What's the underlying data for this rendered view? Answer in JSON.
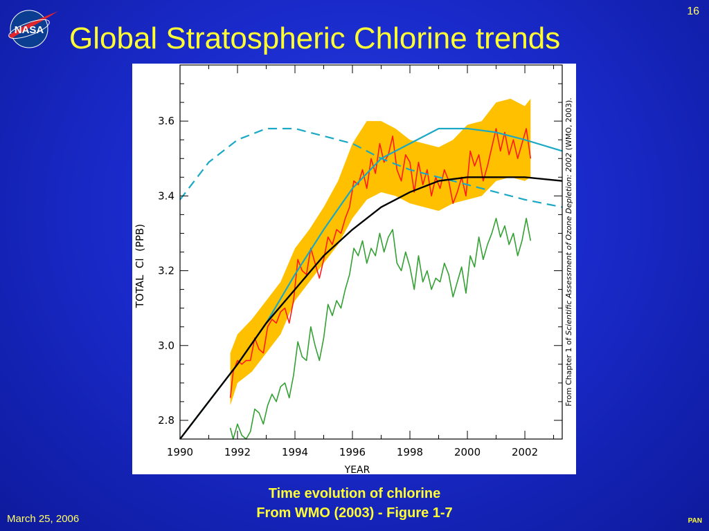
{
  "slide": {
    "title": "Global Stratospheric Chlorine trends",
    "page_number": "16",
    "caption_line1": "Time evolution of chlorine",
    "caption_line2": "From WMO (2003) - Figure 1-7",
    "footer_date": "March 25, 2006",
    "footer_tag": "PAN",
    "logo_text": "NASA"
  },
  "colors": {
    "background": "#1a2bcc",
    "title": "#ffff33",
    "uncertainty_band": "#ffc000",
    "observed": "#ff1a1a",
    "lower": "#33a033",
    "model_solid": "#1aa8c4",
    "model_dashed": "#1aa8c4",
    "fit": "#000000"
  },
  "chart_data": {
    "type": "line",
    "xlabel": "YEAR",
    "ylabel": "TOTAL  Cl  (PPB)",
    "side_note_pre": "From Chapter 1 of ",
    "side_note_italic": "Scientific Assessment of Ozone Depletion: 2002",
    "side_note_post": " (WMO, 2003).",
    "xlim": [
      1990,
      2003.3
    ],
    "ylim": [
      2.75,
      3.75
    ],
    "x_ticks": [
      1990,
      1992,
      1994,
      1996,
      1998,
      2000,
      2002
    ],
    "x_tick_labels": [
      "1990",
      "1992",
      "1994",
      "1996",
      "1998",
      "2000",
      "2002"
    ],
    "y_ticks": [
      2.8,
      3.0,
      3.2,
      3.4,
      3.6
    ],
    "y_tick_labels": [
      "2.8",
      "3.0",
      "3.2",
      "3.4",
      "3.6"
    ],
    "grid": false,
    "series": [
      {
        "key": "observed_band",
        "style": "band",
        "x": [
          1991.75,
          1992.0,
          1992.5,
          1993.0,
          1993.5,
          1994.0,
          1994.5,
          1995.0,
          1995.5,
          1996.0,
          1996.5,
          1997.0,
          1997.5,
          1998.0,
          1998.5,
          1999.0,
          1999.5,
          2000.0,
          2000.5,
          2001.0,
          2001.5,
          2002.0,
          2002.2
        ],
        "low": [
          2.84,
          2.9,
          2.93,
          2.98,
          3.03,
          3.12,
          3.17,
          3.22,
          3.27,
          3.34,
          3.39,
          3.41,
          3.4,
          3.38,
          3.37,
          3.36,
          3.38,
          3.39,
          3.4,
          3.44,
          3.45,
          3.44,
          3.45
        ],
        "high": [
          2.98,
          3.03,
          3.07,
          3.12,
          3.17,
          3.26,
          3.31,
          3.37,
          3.44,
          3.54,
          3.6,
          3.6,
          3.58,
          3.55,
          3.54,
          3.53,
          3.55,
          3.59,
          3.6,
          3.65,
          3.66,
          3.64,
          3.66
        ]
      },
      {
        "key": "observed",
        "style": "solid",
        "x": [
          1991.75,
          1991.85,
          1992.0,
          1992.15,
          1992.3,
          1992.45,
          1992.6,
          1992.75,
          1992.9,
          1993.05,
          1993.2,
          1993.35,
          1993.5,
          1993.65,
          1993.8,
          1993.95,
          1994.1,
          1994.25,
          1994.4,
          1994.55,
          1994.7,
          1994.85,
          1995.0,
          1995.15,
          1995.3,
          1995.45,
          1995.6,
          1995.75,
          1995.9,
          1996.05,
          1996.2,
          1996.35,
          1996.5,
          1996.65,
          1996.8,
          1996.95,
          1997.1,
          1997.25,
          1997.4,
          1997.55,
          1997.7,
          1997.85,
          1998.0,
          1998.15,
          1998.3,
          1998.45,
          1998.6,
          1998.75,
          1998.9,
          1999.05,
          1999.2,
          1999.35,
          1999.5,
          1999.65,
          1999.8,
          1999.95,
          2000.1,
          2000.25,
          2000.4,
          2000.55,
          2000.7,
          2000.85,
          2001.0,
          2001.15,
          2001.3,
          2001.45,
          2001.6,
          2001.75,
          2001.9,
          2002.05,
          2002.2
        ],
        "y": [
          2.86,
          2.93,
          2.96,
          2.95,
          2.96,
          2.96,
          3.02,
          2.99,
          2.98,
          3.05,
          3.07,
          3.06,
          3.09,
          3.1,
          3.06,
          3.12,
          3.23,
          3.2,
          3.19,
          3.26,
          3.22,
          3.18,
          3.23,
          3.29,
          3.27,
          3.31,
          3.3,
          3.34,
          3.37,
          3.44,
          3.43,
          3.47,
          3.42,
          3.5,
          3.46,
          3.54,
          3.49,
          3.51,
          3.56,
          3.47,
          3.44,
          3.51,
          3.49,
          3.41,
          3.49,
          3.43,
          3.47,
          3.4,
          3.45,
          3.42,
          3.47,
          3.44,
          3.38,
          3.41,
          3.45,
          3.4,
          3.52,
          3.48,
          3.51,
          3.44,
          3.48,
          3.53,
          3.58,
          3.52,
          3.57,
          3.51,
          3.55,
          3.5,
          3.54,
          3.58,
          3.5
        ]
      },
      {
        "key": "lower",
        "style": "solid",
        "x": [
          1991.75,
          1991.85,
          1992.0,
          1992.15,
          1992.3,
          1992.45,
          1992.6,
          1992.75,
          1992.9,
          1993.05,
          1993.2,
          1993.35,
          1993.5,
          1993.65,
          1993.8,
          1993.95,
          1994.1,
          1994.25,
          1994.4,
          1994.55,
          1994.7,
          1994.85,
          1995.0,
          1995.15,
          1995.3,
          1995.45,
          1995.6,
          1995.75,
          1995.9,
          1996.05,
          1996.2,
          1996.35,
          1996.5,
          1996.65,
          1996.8,
          1996.95,
          1997.1,
          1997.25,
          1997.4,
          1997.55,
          1997.7,
          1997.85,
          1998.0,
          1998.15,
          1998.3,
          1998.45,
          1998.6,
          1998.75,
          1998.9,
          1999.05,
          1999.2,
          1999.35,
          1999.5,
          1999.65,
          1999.8,
          1999.95,
          2000.1,
          2000.25,
          2000.4,
          2000.55,
          2000.7,
          2000.85,
          2001.0,
          2001.15,
          2001.3,
          2001.45,
          2001.6,
          2001.75,
          2001.9,
          2002.05,
          2002.2
        ],
        "y": [
          2.78,
          2.75,
          2.79,
          2.76,
          2.75,
          2.77,
          2.83,
          2.82,
          2.79,
          2.84,
          2.87,
          2.85,
          2.89,
          2.9,
          2.86,
          2.92,
          3.01,
          2.97,
          2.96,
          3.05,
          3.0,
          2.96,
          3.02,
          3.11,
          3.08,
          3.12,
          3.1,
          3.15,
          3.19,
          3.26,
          3.24,
          3.28,
          3.22,
          3.26,
          3.24,
          3.3,
          3.25,
          3.29,
          3.31,
          3.22,
          3.2,
          3.25,
          3.21,
          3.15,
          3.24,
          3.17,
          3.2,
          3.15,
          3.18,
          3.17,
          3.22,
          3.19,
          3.13,
          3.17,
          3.21,
          3.14,
          3.24,
          3.21,
          3.29,
          3.23,
          3.27,
          3.3,
          3.34,
          3.29,
          3.32,
          3.27,
          3.3,
          3.24,
          3.28,
          3.34,
          3.28
        ]
      },
      {
        "key": "model_solid",
        "style": "solid",
        "x": [
          1990.0,
          1991.0,
          1992.0,
          1993.0,
          1994.0,
          1995.0,
          1996.0,
          1997.0,
          1998.0,
          1999.0,
          2000.0,
          2001.0,
          2002.0,
          2003.3
        ],
        "y": [
          2.75,
          2.85,
          2.95,
          3.06,
          3.19,
          3.31,
          3.42,
          3.5,
          3.54,
          3.58,
          3.58,
          3.57,
          3.55,
          3.52
        ]
      },
      {
        "key": "model_dashed",
        "style": "dashed",
        "x": [
          1990.0,
          1991.0,
          1992.0,
          1993.0,
          1994.0,
          1995.0,
          1996.0,
          1997.0,
          1998.0,
          1999.0,
          2000.0,
          2001.0,
          2002.0,
          2003.3
        ],
        "y": [
          3.39,
          3.49,
          3.55,
          3.58,
          3.58,
          3.56,
          3.54,
          3.5,
          3.47,
          3.45,
          3.43,
          3.41,
          3.39,
          3.37
        ]
      },
      {
        "key": "fit",
        "style": "solid",
        "x": [
          1990.0,
          1991.0,
          1992.0,
          1993.0,
          1994.0,
          1995.0,
          1996.0,
          1997.0,
          1998.0,
          1999.0,
          2000.0,
          2001.0,
          2002.0,
          2003.3
        ],
        "y": [
          2.75,
          2.85,
          2.95,
          3.06,
          3.15,
          3.24,
          3.31,
          3.37,
          3.41,
          3.44,
          3.45,
          3.45,
          3.45,
          3.44
        ]
      }
    ]
  }
}
